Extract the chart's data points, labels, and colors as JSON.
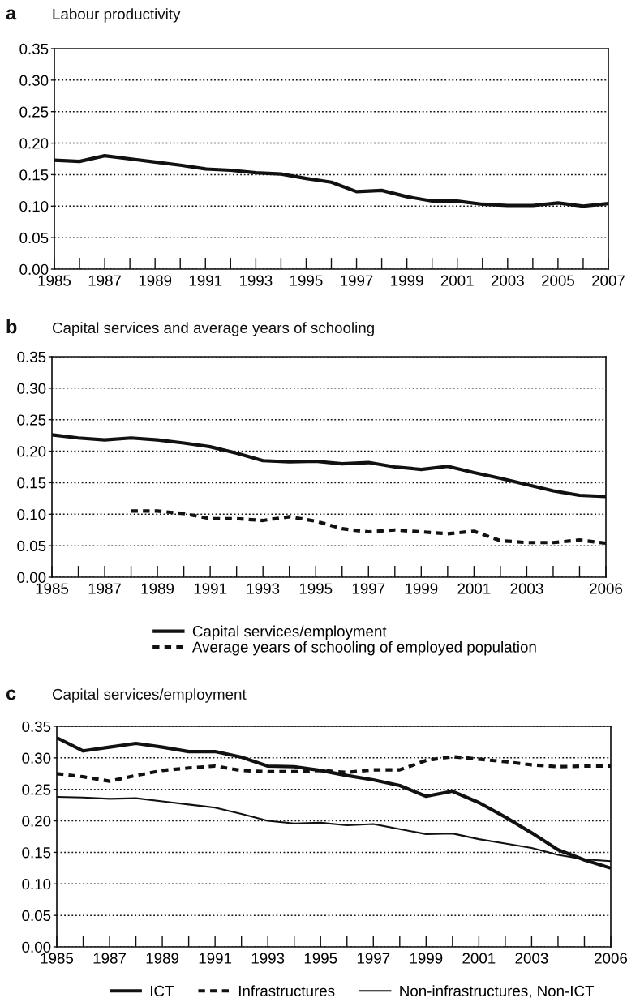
{
  "chart_data": [
    {
      "type": "line",
      "title": "Labour productivity",
      "annotations": [
        "a"
      ],
      "x": [
        1985,
        1986,
        1987,
        1988,
        1989,
        1990,
        1991,
        1992,
        1993,
        1994,
        1995,
        1996,
        1997,
        1998,
        1999,
        2000,
        2001,
        2002,
        2003,
        2004,
        2005,
        2006,
        2007
      ],
      "series": [
        {
          "color": "#111111",
          "line_style": "solid",
          "values": [
            0.173,
            0.171,
            0.18,
            0.175,
            0.17,
            0.165,
            0.159,
            0.157,
            0.153,
            0.151,
            0.144,
            0.138,
            0.123,
            0.125,
            0.115,
            0.108,
            0.108,
            0.103,
            0.101,
            0.101,
            0.105,
            0.1,
            0.104
          ]
        }
      ],
      "xlim": [
        1985,
        2007
      ],
      "xticks": [
        1985,
        {
          "value": 1986,
          "label": null
        },
        1987,
        {
          "value": 1988,
          "label": null
        },
        1989,
        {
          "value": 1990,
          "label": null
        },
        1991,
        {
          "value": 1992,
          "label": null
        },
        1993,
        {
          "value": 1994,
          "label": null
        },
        1995,
        {
          "value": 1996,
          "label": null
        },
        1997,
        {
          "value": 1998,
          "label": null
        },
        1999,
        {
          "value": 2000,
          "label": null
        },
        2001,
        {
          "value": 2002,
          "label": null
        },
        2003,
        {
          "value": 2004,
          "label": null
        },
        2005,
        {
          "value": 2006,
          "label": null
        },
        2007
      ],
      "ylim": [
        0,
        0.35
      ],
      "yticks": [
        {
          "value": 0,
          "label": "0.00"
        },
        {
          "value": 0.05,
          "label": "0.05"
        },
        {
          "value": 0.1,
          "label": "0.10"
        },
        {
          "value": 0.15,
          "label": "0.15"
        },
        {
          "value": 0.2,
          "label": "0.20"
        },
        {
          "value": 0.25,
          "label": "0.25"
        },
        {
          "value": 0.3,
          "label": "0.30"
        },
        {
          "value": 0.35,
          "label": "0.35"
        }
      ],
      "grid": "y"
    },
    {
      "type": "line",
      "title": "Capital services and average years of schooling",
      "annotations": [
        "b"
      ],
      "x": [
        1985,
        1986,
        1987,
        1988,
        1989,
        1990,
        1991,
        1992,
        1993,
        1994,
        1995,
        1996,
        1997,
        1998,
        1999,
        2000,
        2001,
        2002,
        2003,
        2004,
        2005,
        2006
      ],
      "series": [
        {
          "name": "Capital services/employment",
          "color": "#111111",
          "line_style": "solid",
          "values": [
            0.226,
            0.221,
            0.218,
            0.221,
            0.218,
            0.213,
            0.207,
            0.197,
            0.185,
            0.183,
            0.184,
            0.18,
            0.182,
            0.175,
            0.171,
            0.176,
            0.166,
            0.157,
            0.147,
            0.137,
            0.13,
            0.128
          ]
        },
        {
          "name": "Average years of schooling of employed population",
          "color": "#111111",
          "line_style": "dashed",
          "values": [
            null,
            null,
            null,
            0.105,
            0.105,
            0.101,
            0.093,
            0.093,
            0.09,
            0.096,
            0.089,
            0.077,
            0.072,
            0.075,
            0.072,
            0.069,
            0.073,
            0.058,
            0.055,
            0.055,
            0.059,
            0.054
          ]
        }
      ],
      "xlim": [
        1985,
        2006
      ],
      "xticks": [
        1985,
        {
          "value": 1986,
          "label": null
        },
        1987,
        {
          "value": 1988,
          "label": null
        },
        1989,
        {
          "value": 1990,
          "label": null
        },
        1991,
        {
          "value": 1992,
          "label": null
        },
        1993,
        {
          "value": 1994,
          "label": null
        },
        1995,
        {
          "value": 1996,
          "label": null
        },
        1997,
        {
          "value": 1998,
          "label": null
        },
        1999,
        {
          "value": 2000,
          "label": null
        },
        2001,
        {
          "value": 2002,
          "label": null
        },
        2003,
        {
          "value": 2004,
          "label": null
        },
        {
          "value": 2005,
          "label": null
        },
        2006
      ],
      "ylim": [
        0,
        0.35
      ],
      "yticks": [
        {
          "value": 0,
          "label": "0.00"
        },
        {
          "value": 0.05,
          "label": "0.05"
        },
        {
          "value": 0.1,
          "label": "0.10"
        },
        {
          "value": 0.15,
          "label": "0.15"
        },
        {
          "value": 0.2,
          "label": "0.20"
        },
        {
          "value": 0.25,
          "label": "0.25"
        },
        {
          "value": 0.3,
          "label": "0.30"
        },
        {
          "value": 0.35,
          "label": "0.35"
        }
      ],
      "grid": "y",
      "legend": "bottom"
    },
    {
      "type": "line",
      "title": "Capital services/employment",
      "annotations": [
        "c"
      ],
      "x": [
        1985,
        1986,
        1987,
        1988,
        1989,
        1990,
        1991,
        1992,
        1993,
        1994,
        1995,
        1996,
        1997,
        1998,
        1999,
        2000,
        2001,
        2002,
        2003,
        2004,
        2005,
        2006
      ],
      "series": [
        {
          "name": "ICT",
          "color": "#111111",
          "line_style": "solid",
          "values": [
            0.332,
            0.311,
            0.317,
            0.323,
            0.317,
            0.31,
            0.31,
            0.301,
            0.287,
            0.286,
            0.28,
            0.272,
            0.265,
            0.256,
            0.239,
            0.247,
            0.229,
            0.206,
            0.181,
            0.154,
            0.138,
            0.125
          ]
        },
        {
          "name": "Infrastructures",
          "color": "#111111",
          "line_style": "dashed",
          "values": [
            0.275,
            0.27,
            0.263,
            0.272,
            0.28,
            0.284,
            0.287,
            0.28,
            0.278,
            0.278,
            0.28,
            0.277,
            0.281,
            0.281,
            0.296,
            0.302,
            0.298,
            0.294,
            0.289,
            0.286,
            0.287,
            0.287
          ]
        },
        {
          "name": "Non-infrastructures, Non-ICT",
          "color": "#111111",
          "line_style": "solid",
          "values": [
            0.238,
            0.237,
            0.235,
            0.236,
            0.231,
            0.226,
            0.221,
            0.211,
            0.2,
            0.196,
            0.197,
            0.193,
            0.195,
            0.187,
            0.179,
            0.18,
            0.171,
            0.164,
            0.157,
            0.146,
            0.139,
            0.136
          ]
        }
      ],
      "xlim": [
        1985,
        2006
      ],
      "xticks": [
        1985,
        {
          "value": 1986,
          "label": null
        },
        1987,
        {
          "value": 1988,
          "label": null
        },
        1989,
        {
          "value": 1990,
          "label": null
        },
        1991,
        {
          "value": 1992,
          "label": null
        },
        1993,
        {
          "value": 1994,
          "label": null
        },
        1995,
        {
          "value": 1996,
          "label": null
        },
        1997,
        {
          "value": 1998,
          "label": null
        },
        1999,
        {
          "value": 2000,
          "label": null
        },
        2001,
        {
          "value": 2002,
          "label": null
        },
        2003,
        {
          "value": 2004,
          "label": null
        },
        {
          "value": 2005,
          "label": null
        },
        2006
      ],
      "ylim": [
        0,
        0.35
      ],
      "yticks": [
        {
          "value": 0,
          "label": "0.00"
        },
        {
          "value": 0.05,
          "label": "0.05"
        },
        {
          "value": 0.1,
          "label": "0.10"
        },
        {
          "value": 0.15,
          "label": "0.15"
        },
        {
          "value": 0.2,
          "label": "0.20"
        },
        {
          "value": 0.25,
          "label": "0.25"
        },
        {
          "value": 0.3,
          "label": "0.30"
        },
        {
          "value": 0.35,
          "label": "0.35"
        }
      ],
      "grid": "y",
      "legend": "bottom"
    }
  ]
}
